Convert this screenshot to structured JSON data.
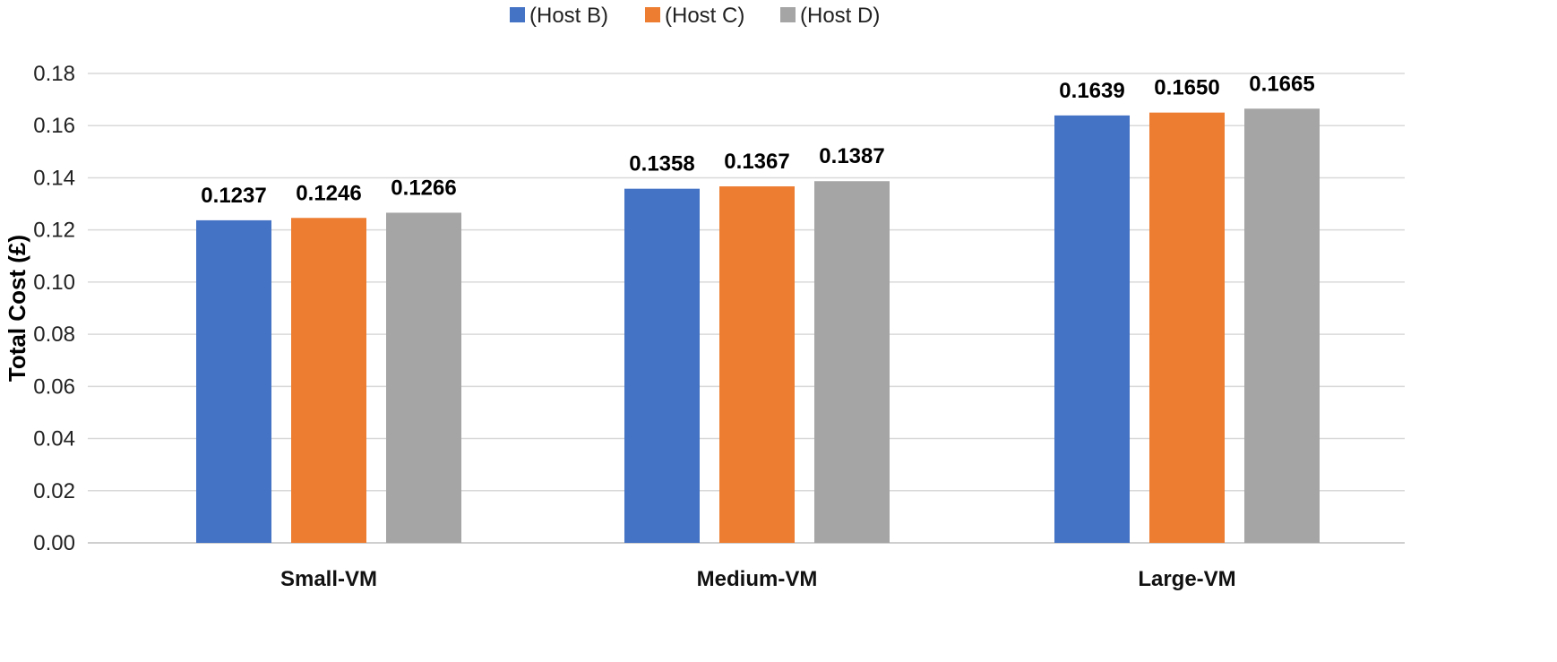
{
  "chart_data": {
    "type": "bar",
    "title": "",
    "xlabel": "",
    "ylabel": "Total Cost (£)",
    "categories": [
      "Small-VM",
      "Medium-VM",
      "Large-VM"
    ],
    "series": [
      {
        "name": "(Host B)",
        "color": "#4472C4",
        "values": [
          0.1237,
          0.1358,
          0.1639
        ],
        "labels": [
          "0.1237",
          "0.1358",
          "0.1639"
        ]
      },
      {
        "name": "(Host C)",
        "color": "#ED7D31",
        "values": [
          0.1246,
          0.1367,
          0.165
        ],
        "labels": [
          "0.1246",
          "0.1367",
          "0.1650"
        ]
      },
      {
        "name": "(Host D)",
        "color": "#A5A5A5",
        "values": [
          0.1266,
          0.1387,
          0.1665
        ],
        "labels": [
          "0.1266",
          "0.1387",
          "0.1665"
        ]
      }
    ],
    "ylim": [
      0,
      0.18
    ],
    "yticks": [
      "0.00",
      "0.02",
      "0.04",
      "0.06",
      "0.08",
      "0.10",
      "0.12",
      "0.14",
      "0.16",
      "0.18"
    ],
    "grid": true,
    "legend": "top-center",
    "data_labels": true
  }
}
